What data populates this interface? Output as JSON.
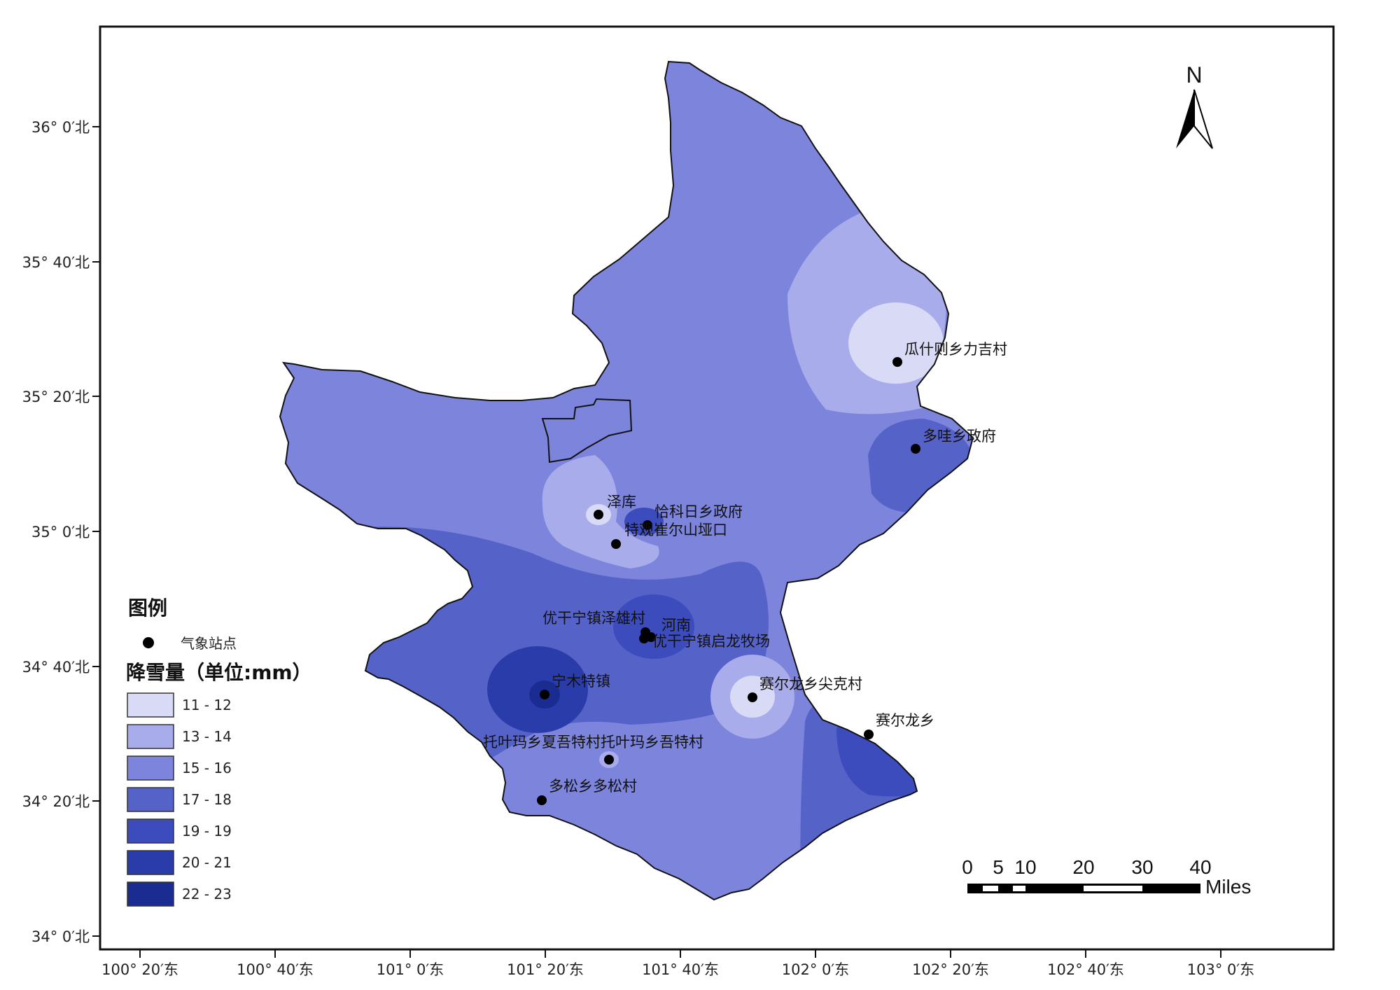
{
  "map": {
    "axes": {
      "lat_ticks": [
        "36° 0′北",
        "35° 40′北",
        "35° 20′北",
        "35° 0′北",
        "34° 40′北",
        "34° 20′北",
        "34° 0′北"
      ],
      "lon_ticks": [
        "100° 20′东",
        "100° 40′东",
        "101° 0′东",
        "101° 20′东",
        "101° 40′东",
        "102° 0′东",
        "102° 20′东",
        "102° 40′东",
        "103° 0′东"
      ]
    },
    "north_arrow": {
      "label": "N",
      "icon": "north-arrow-icon"
    },
    "legend": {
      "title": "图例",
      "station_label": "气象站点",
      "snowfall_title": "降雪量（单位:mm）",
      "classes": [
        {
          "label": "11 - 12",
          "color": "#d9daf6"
        },
        {
          "label": "13 - 14",
          "color": "#a9acea"
        },
        {
          "label": "15 - 16",
          "color": "#7c84dc"
        },
        {
          "label": "17 - 18",
          "color": "#5563c9"
        },
        {
          "label": "19 - 19",
          "color": "#3c4cbd"
        },
        {
          "label": "20 - 21",
          "color": "#2a3caa"
        },
        {
          "label": "22 - 23",
          "color": "#1a2c92"
        }
      ]
    },
    "stations": [
      {
        "name": "瓜什则乡力吉村",
        "class": 0
      },
      {
        "name": "多哇乡政府",
        "class": 3
      },
      {
        "name": "泽库",
        "class": 0
      },
      {
        "name": "恰科日乡政府",
        "class": 3
      },
      {
        "name": "特观崔尔山垭口",
        "class": 2
      },
      {
        "name": "优干宁镇泽雄村",
        "class": 4
      },
      {
        "name": "河南",
        "class": 4
      },
      {
        "name": "优干宁镇启龙牧场",
        "class": 4
      },
      {
        "name": "宁木特镇",
        "class": 6
      },
      {
        "name": "赛尔龙乡尖克村",
        "class": 0
      },
      {
        "name": "赛尔龙乡",
        "class": 5
      },
      {
        "name": "托叶玛乡夏吾特村托叶玛乡吾特村",
        "class": 1
      },
      {
        "name": "多松乡多松村",
        "class": 2
      }
    ],
    "scale_bar": {
      "ticks": [
        "0",
        "5",
        "10",
        "20",
        "30",
        "40"
      ],
      "unit": "Miles"
    }
  }
}
